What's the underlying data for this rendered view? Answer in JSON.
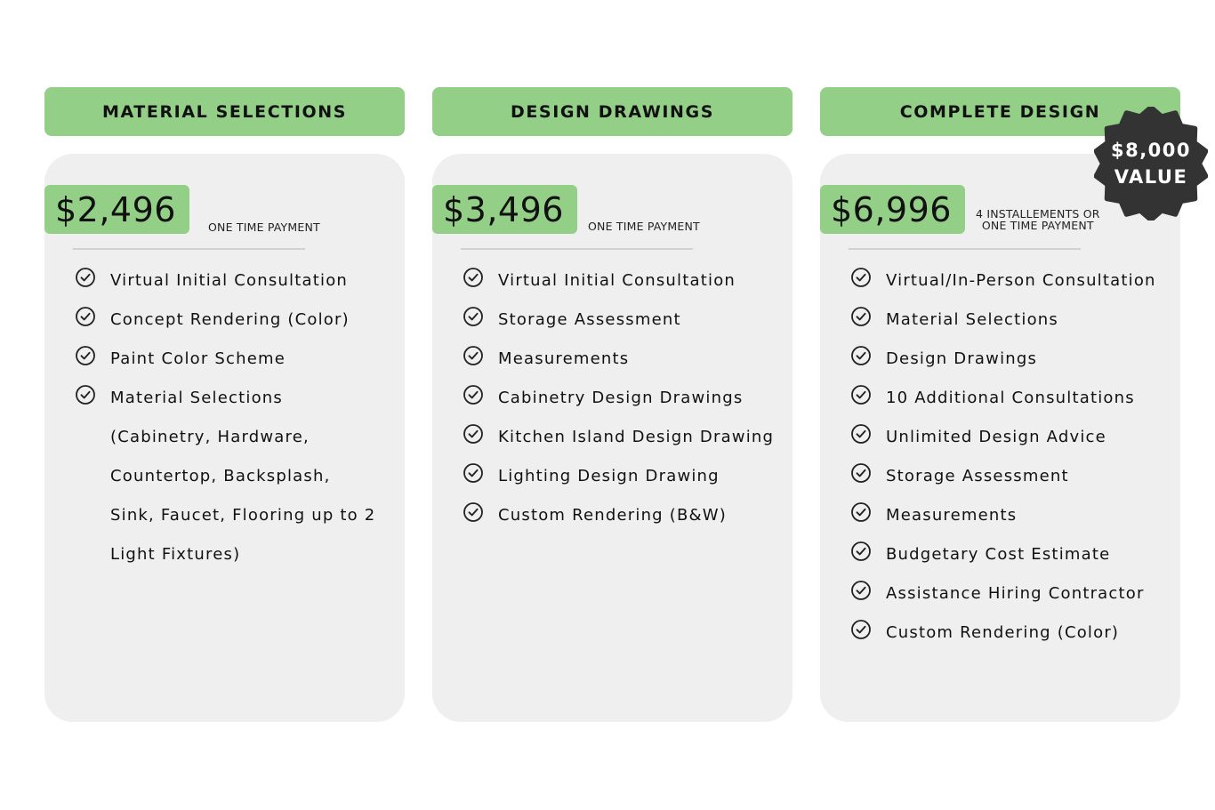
{
  "colors": {
    "accent_green": "#93cf87",
    "card_gray": "#efefef",
    "badge_dark": "#333333"
  },
  "plans": [
    {
      "title": "MATERIAL SELECTIONS",
      "price": "$2,496",
      "payment_note": "ONE TIME PAYMENT",
      "features": [
        "Virtual Initial Consultation",
        "Concept Rendering (Color)",
        "Paint Color Scheme",
        "Material Selections (Cabinetry, Hardware, Countertop, Backsplash, Sink, Faucet, Flooring up to 2 Light Fixtures)"
      ]
    },
    {
      "title": "DESIGN DRAWINGS",
      "price": "$3,496",
      "payment_note": "ONE TIME PAYMENT",
      "features": [
        "Virtual Initial Consultation",
        "Storage Assessment",
        "Measurements",
        "Cabinetry Design Drawings",
        "Kitchen Island Design Drawing",
        "Lighting Design Drawing",
        "Custom Rendering (B&W)"
      ]
    },
    {
      "title": "COMPLETE DESIGN",
      "price": "$6,996",
      "payment_note_line1": "4 INSTALLEMENTS OR",
      "payment_note_line2": "ONE TIME PAYMENT",
      "features": [
        "Virtual/In-Person Consultation",
        "Material Selections",
        "Design Drawings",
        "10 Additional Consultations",
        "Unlimited Design Advice",
        "Storage Assessment",
        "Measurements",
        "Budgetary Cost Estimate",
        "Assistance Hiring Contractor",
        "Custom Rendering (Color)"
      ]
    }
  ],
  "value_badge": {
    "amount": "$8,000",
    "label": "VALUE"
  },
  "icons": {
    "feature_bullet": "check-circle-icon",
    "badge_shape": "scalloped-seal-badge"
  }
}
